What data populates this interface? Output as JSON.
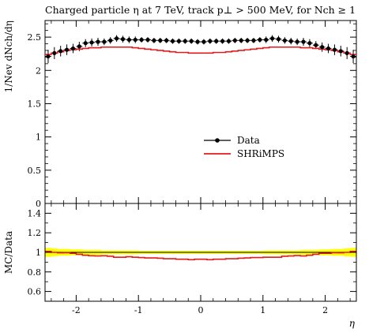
{
  "chart_data": [
    {
      "type": "line",
      "panel": "main",
      "title": "Charged particle η at 7 TeV, track p⊥ > 500 MeV, for Nch ≥ 1",
      "xlabel": "",
      "ylabel": "1/Nev dNch/dη",
      "xlim": [
        -2.5,
        2.5
      ],
      "ylim": [
        0,
        2.75
      ],
      "yticks": [
        0,
        0.5,
        1,
        1.5,
        2,
        2.5
      ],
      "legend_position": "center-right",
      "x": [
        -2.45,
        -2.35,
        -2.25,
        -2.15,
        -2.05,
        -1.95,
        -1.85,
        -1.75,
        -1.65,
        -1.55,
        -1.45,
        -1.35,
        -1.25,
        -1.15,
        -1.05,
        -0.95,
        -0.85,
        -0.75,
        -0.65,
        -0.55,
        -0.45,
        -0.35,
        -0.25,
        -0.15,
        -0.05,
        0.05,
        0.15,
        0.25,
        0.35,
        0.45,
        0.55,
        0.65,
        0.75,
        0.85,
        0.95,
        1.05,
        1.15,
        1.25,
        1.35,
        1.45,
        1.55,
        1.65,
        1.75,
        1.85,
        1.95,
        2.05,
        2.15,
        2.25,
        2.35,
        2.45
      ],
      "series": [
        {
          "name": "Data",
          "color": "#000000",
          "style": "points-with-errorbars",
          "values": [
            2.21,
            2.26,
            2.29,
            2.31,
            2.33,
            2.36,
            2.41,
            2.42,
            2.43,
            2.43,
            2.45,
            2.48,
            2.47,
            2.46,
            2.46,
            2.46,
            2.46,
            2.45,
            2.45,
            2.45,
            2.44,
            2.44,
            2.44,
            2.44,
            2.43,
            2.43,
            2.44,
            2.44,
            2.44,
            2.44,
            2.45,
            2.45,
            2.45,
            2.45,
            2.46,
            2.46,
            2.48,
            2.47,
            2.45,
            2.44,
            2.43,
            2.43,
            2.41,
            2.38,
            2.35,
            2.33,
            2.31,
            2.29,
            2.26,
            2.21
          ],
          "errors": [
            0.1,
            0.09,
            0.08,
            0.08,
            0.07,
            0.07,
            0.06,
            0.06,
            0.06,
            0.05,
            0.05,
            0.05,
            0.05,
            0.05,
            0.05,
            0.04,
            0.04,
            0.04,
            0.04,
            0.04,
            0.04,
            0.04,
            0.04,
            0.04,
            0.04,
            0.04,
            0.04,
            0.04,
            0.04,
            0.04,
            0.04,
            0.04,
            0.04,
            0.04,
            0.04,
            0.05,
            0.05,
            0.05,
            0.05,
            0.05,
            0.05,
            0.06,
            0.06,
            0.06,
            0.07,
            0.07,
            0.08,
            0.08,
            0.09,
            0.1
          ]
        },
        {
          "name": "SHRiMPS",
          "color": "#e31a1c",
          "style": "histogram-step",
          "values": [
            2.24,
            2.26,
            2.28,
            2.3,
            2.31,
            2.32,
            2.33,
            2.34,
            2.34,
            2.35,
            2.35,
            2.35,
            2.35,
            2.35,
            2.34,
            2.33,
            2.32,
            2.31,
            2.3,
            2.29,
            2.28,
            2.27,
            2.27,
            2.26,
            2.26,
            2.26,
            2.26,
            2.27,
            2.27,
            2.28,
            2.29,
            2.3,
            2.31,
            2.32,
            2.33,
            2.34,
            2.35,
            2.35,
            2.35,
            2.35,
            2.35,
            2.34,
            2.34,
            2.33,
            2.32,
            2.31,
            2.3,
            2.28,
            2.26,
            2.24
          ]
        }
      ]
    },
    {
      "type": "line",
      "panel": "ratio",
      "xlabel": "η",
      "ylabel": "MC/Data",
      "xlim": [
        -2.5,
        2.5
      ],
      "ylim": [
        0.5,
        1.5
      ],
      "yticks": [
        0.6,
        0.8,
        1,
        1.2,
        1.4
      ],
      "xticks": [
        -2,
        -1,
        0,
        1,
        2
      ],
      "band_color": "#ffff00",
      "band_halfwidth": [
        0.045,
        0.04,
        0.035,
        0.035,
        0.03,
        0.03,
        0.025,
        0.025,
        0.025,
        0.02,
        0.02,
        0.02,
        0.02,
        0.02,
        0.02,
        0.016,
        0.016,
        0.016,
        0.016,
        0.016,
        0.016,
        0.016,
        0.016,
        0.016,
        0.016,
        0.016,
        0.016,
        0.016,
        0.016,
        0.016,
        0.016,
        0.016,
        0.016,
        0.016,
        0.016,
        0.02,
        0.02,
        0.02,
        0.02,
        0.02,
        0.02,
        0.025,
        0.025,
        0.025,
        0.03,
        0.03,
        0.035,
        0.035,
        0.04,
        0.045
      ],
      "series": [
        {
          "name": "SHRiMPS",
          "color": "#e31a1c",
          "values": [
            1.01,
            1.0,
            0.995,
            0.996,
            0.99,
            0.98,
            0.97,
            0.965,
            0.963,
            0.965,
            0.96,
            0.95,
            0.95,
            0.955,
            0.95,
            0.947,
            0.943,
            0.943,
            0.94,
            0.935,
            0.935,
            0.93,
            0.93,
            0.925,
            0.93,
            0.93,
            0.925,
            0.93,
            0.93,
            0.935,
            0.935,
            0.94,
            0.943,
            0.947,
            0.947,
            0.95,
            0.95,
            0.95,
            0.96,
            0.963,
            0.967,
            0.963,
            0.97,
            0.98,
            0.99,
            0.99,
            0.996,
            0.995,
            1.0,
            1.01
          ]
        }
      ]
    }
  ]
}
